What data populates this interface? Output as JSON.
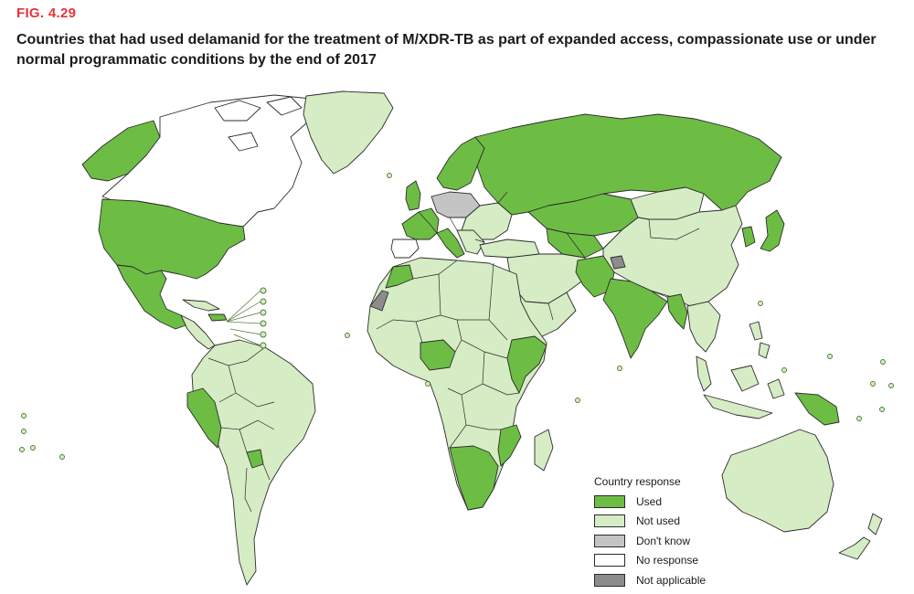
{
  "figure": {
    "label": "FIG. 4.29",
    "title": "Countries that had used delamanid for the treatment of M/XDR-TB as part of expanded access, compassionate use or under normal programmatic conditions by the end of 2017"
  },
  "legend": {
    "title": "Country response",
    "items": [
      {
        "label": "Used",
        "color": "#6dbd45"
      },
      {
        "label": "Not used",
        "color": "#d6ecc4"
      },
      {
        "label": "Don't know",
        "color": "#c4c4c4"
      },
      {
        "label": "No response",
        "color": "#ffffff"
      },
      {
        "label": "Not applicable",
        "color": "#8c8c8c"
      }
    ]
  },
  "colors": {
    "used": "#6dbd45",
    "not_used": "#d6ecc4",
    "dont_know": "#c4c4c4",
    "no_response": "#ffffff",
    "not_applicable": "#8c8c8c"
  }
}
